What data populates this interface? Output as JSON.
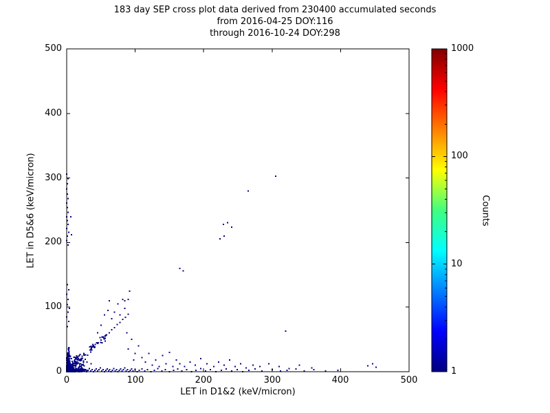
{
  "chart_data": {
    "type": "scatter",
    "title_lines": [
      "183 day SEP cross plot data derived from 230400 accumulated seconds",
      "from 2016-04-25 DOY:116",
      "through 2016-10-24 DOY:298"
    ],
    "xlabel": "LET in D1&2 (keV/micron)",
    "ylabel": "LET in D5&6 (keV/micron)",
    "xlim": [
      0,
      500
    ],
    "ylim": [
      0,
      500
    ],
    "xticks": [
      0,
      100,
      200,
      300,
      400,
      500
    ],
    "yticks": [
      0,
      100,
      200,
      300,
      400,
      500
    ],
    "grid": false,
    "point_color": "#000084",
    "colorbar": {
      "label": "Counts",
      "scale": "log",
      "min": 1,
      "max": 1000,
      "ticks": [
        1,
        10,
        100,
        1000
      ],
      "colormap": "jet",
      "gradient_stops": [
        {
          "pos": 0.0,
          "color": "#000080"
        },
        {
          "pos": 0.125,
          "color": "#0000ff"
        },
        {
          "pos": 0.375,
          "color": "#00ffff"
        },
        {
          "pos": 0.5,
          "color": "#40ff80"
        },
        {
          "pos": 0.625,
          "color": "#ffff00"
        },
        {
          "pos": 0.875,
          "color": "#ff0000"
        },
        {
          "pos": 1.0,
          "color": "#800000"
        }
      ]
    },
    "dense_clusters": [
      {
        "kind": "blob",
        "cx": 2,
        "cy": 4,
        "sx": 6,
        "sy": 9,
        "n": 500
      },
      {
        "kind": "blob",
        "cx": 10,
        "cy": 2,
        "sx": 16,
        "sy": 2.5,
        "n": 220
      },
      {
        "kind": "blob",
        "cx": 2,
        "cy": 14,
        "sx": 2.5,
        "sy": 20,
        "n": 130
      },
      {
        "kind": "blob",
        "cx": 16,
        "cy": 14,
        "sx": 14,
        "sy": 12,
        "n": 80
      },
      {
        "kind": "diag",
        "len": 55,
        "jitter": 4,
        "n": 70
      }
    ],
    "points": [
      [
        15,
        1
      ],
      [
        17,
        3
      ],
      [
        19,
        0
      ],
      [
        21,
        2
      ],
      [
        23,
        4
      ],
      [
        25,
        1
      ],
      [
        27,
        3
      ],
      [
        29,
        0
      ],
      [
        31,
        2
      ],
      [
        33,
        5
      ],
      [
        35,
        1
      ],
      [
        37,
        3
      ],
      [
        39,
        0
      ],
      [
        41,
        2
      ],
      [
        43,
        4
      ],
      [
        45,
        1
      ],
      [
        47,
        3
      ],
      [
        49,
        6
      ],
      [
        51,
        1
      ],
      [
        53,
        3
      ],
      [
        55,
        0
      ],
      [
        57,
        2
      ],
      [
        59,
        4
      ],
      [
        61,
        1
      ],
      [
        63,
        3
      ],
      [
        65,
        0
      ],
      [
        67,
        2
      ],
      [
        69,
        5
      ],
      [
        71,
        1
      ],
      [
        73,
        3
      ],
      [
        75,
        0
      ],
      [
        77,
        2
      ],
      [
        79,
        4
      ],
      [
        81,
        1
      ],
      [
        83,
        3
      ],
      [
        85,
        6
      ],
      [
        87,
        1
      ],
      [
        89,
        3
      ],
      [
        91,
        0
      ],
      [
        93,
        2
      ],
      [
        95,
        4
      ],
      [
        97,
        1
      ],
      [
        100,
        3
      ],
      [
        103,
        0
      ],
      [
        106,
        2
      ],
      [
        110,
        4
      ],
      [
        114,
        1
      ],
      [
        118,
        3
      ],
      [
        123,
        0
      ],
      [
        128,
        2
      ],
      [
        133,
        5
      ],
      [
        139,
        1
      ],
      [
        144,
        3
      ],
      [
        150,
        0
      ],
      [
        156,
        2
      ],
      [
        162,
        4
      ],
      [
        168,
        1
      ],
      [
        175,
        3
      ],
      [
        182,
        0
      ],
      [
        189,
        2
      ],
      [
        196,
        5
      ],
      [
        203,
        1
      ],
      [
        210,
        3
      ],
      [
        218,
        0
      ],
      [
        226,
        2
      ],
      [
        233,
        4
      ],
      [
        241,
        1
      ],
      [
        249,
        3
      ],
      [
        257,
        0
      ],
      [
        266,
        2
      ],
      [
        275,
        4
      ],
      [
        285,
        1
      ],
      [
        300,
        3
      ],
      [
        312,
        1
      ],
      [
        322,
        2
      ],
      [
        335,
        4
      ],
      [
        347,
        1
      ],
      [
        361,
        3
      ],
      [
        378,
        1
      ],
      [
        396,
        2
      ],
      [
        440,
        9
      ],
      [
        447,
        12
      ],
      [
        452,
        7
      ],
      [
        1,
        70
      ],
      [
        3,
        78
      ],
      [
        0,
        85
      ],
      [
        2,
        92
      ],
      [
        4,
        98
      ],
      [
        1,
        104
      ],
      [
        2,
        112
      ],
      [
        0,
        120
      ],
      [
        3,
        127
      ],
      [
        1,
        135
      ],
      [
        2,
        196
      ],
      [
        0,
        203
      ],
      [
        1,
        210
      ],
      [
        3,
        216
      ],
      [
        0,
        222
      ],
      [
        2,
        228
      ],
      [
        1,
        234
      ],
      [
        0,
        240
      ],
      [
        2,
        247
      ],
      [
        1,
        254
      ],
      [
        0,
        261
      ],
      [
        2,
        268
      ],
      [
        1,
        275
      ],
      [
        0,
        283
      ],
      [
        1,
        291
      ],
      [
        2,
        299
      ],
      [
        0,
        306
      ],
      [
        7,
        212
      ],
      [
        6,
        240
      ],
      [
        46,
        45
      ],
      [
        50,
        49
      ],
      [
        54,
        52
      ],
      [
        58,
        57
      ],
      [
        62,
        60
      ],
      [
        66,
        65
      ],
      [
        70,
        68
      ],
      [
        74,
        73
      ],
      [
        78,
        76
      ],
      [
        82,
        81
      ],
      [
        86,
        84
      ],
      [
        90,
        89
      ],
      [
        45,
        60
      ],
      [
        50,
        72
      ],
      [
        55,
        88
      ],
      [
        60,
        95
      ],
      [
        62,
        110
      ],
      [
        66,
        82
      ],
      [
        70,
        92
      ],
      [
        75,
        105
      ],
      [
        78,
        88
      ],
      [
        82,
        112
      ],
      [
        85,
        98
      ],
      [
        88,
        60
      ],
      [
        95,
        50
      ],
      [
        90,
        35
      ],
      [
        100,
        28
      ],
      [
        105,
        40
      ],
      [
        98,
        18
      ],
      [
        110,
        22
      ],
      [
        115,
        15
      ],
      [
        120,
        28
      ],
      [
        125,
        10
      ],
      [
        130,
        18
      ],
      [
        135,
        8
      ],
      [
        140,
        25
      ],
      [
        145,
        12
      ],
      [
        150,
        30
      ],
      [
        155,
        8
      ],
      [
        160,
        18
      ],
      [
        165,
        12
      ],
      [
        172,
        8
      ],
      [
        180,
        15
      ],
      [
        188,
        10
      ],
      [
        196,
        20
      ],
      [
        205,
        12
      ],
      [
        215,
        8
      ],
      [
        222,
        15
      ],
      [
        230,
        10
      ],
      [
        238,
        18
      ],
      [
        246,
        8
      ],
      [
        254,
        12
      ],
      [
        262,
        6
      ],
      [
        272,
        10
      ],
      [
        282,
        8
      ],
      [
        295,
        12
      ],
      [
        310,
        8
      ],
      [
        325,
        5
      ],
      [
        340,
        10
      ],
      [
        358,
        6
      ],
      [
        165,
        160
      ],
      [
        170,
        156
      ],
      [
        224,
        206
      ],
      [
        230,
        210
      ],
      [
        229,
        228
      ],
      [
        235,
        231
      ],
      [
        241,
        224
      ],
      [
        265,
        280
      ],
      [
        305,
        303
      ],
      [
        320,
        63
      ],
      [
        90,
        112
      ],
      [
        85,
        110
      ],
      [
        92,
        125
      ]
    ]
  }
}
